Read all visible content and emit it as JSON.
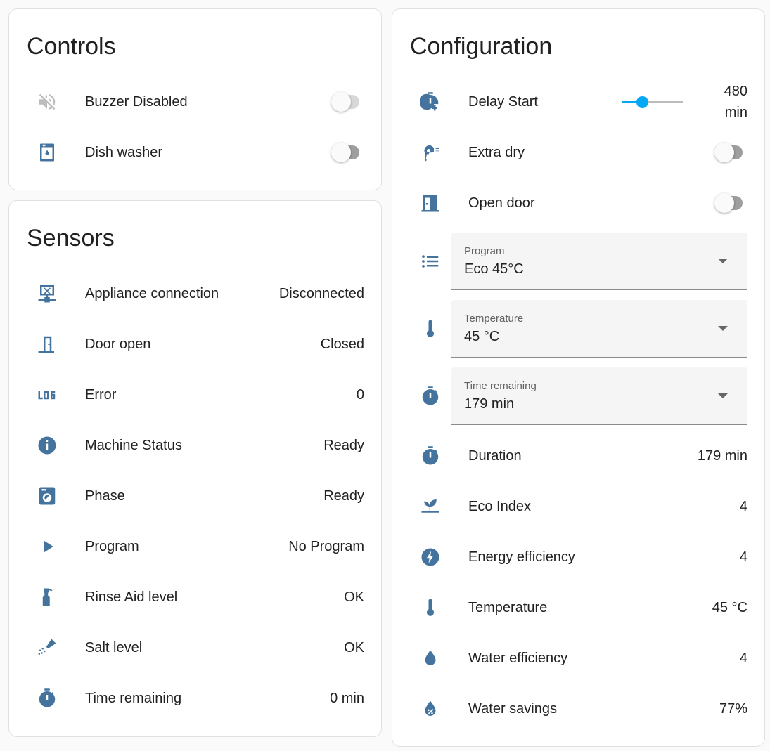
{
  "colors": {
    "icon": "#44739e",
    "accent": "#03a9f4",
    "toggle_off": "#9e9e9e"
  },
  "controls": {
    "title": "Controls",
    "items": [
      {
        "icon": "volume-off-icon",
        "label": "Buzzer Disabled",
        "type": "toggle",
        "state": "off",
        "disabled": true
      },
      {
        "icon": "dishwasher-icon",
        "label": "Dish washer",
        "type": "toggle",
        "state": "off"
      }
    ]
  },
  "sensors": {
    "title": "Sensors",
    "items": [
      {
        "icon": "lan-disconnect-icon",
        "label": "Appliance connection",
        "value": "Disconnected"
      },
      {
        "icon": "door-icon",
        "label": "Door open",
        "value": "Closed"
      },
      {
        "icon": "math-log-icon",
        "label": "Error",
        "value": "0"
      },
      {
        "icon": "information-icon",
        "label": "Machine Status",
        "value": "Ready"
      },
      {
        "icon": "washing-machine-icon",
        "label": "Phase",
        "value": "Ready"
      },
      {
        "icon": "play-icon",
        "label": "Program",
        "value": "No Program"
      },
      {
        "icon": "spray-bottle-icon",
        "label": "Rinse Aid level",
        "value": "OK"
      },
      {
        "icon": "shaker-icon",
        "label": "Salt level",
        "value": "OK"
      },
      {
        "icon": "timer-icon",
        "label": "Time remaining",
        "value": "0 min"
      }
    ]
  },
  "configuration": {
    "title": "Configuration",
    "delay_start": {
      "icon": "timer-plus-icon",
      "label": "Delay Start",
      "value": "480",
      "unit": "min",
      "slider_fraction": 0.32
    },
    "toggles": [
      {
        "icon": "hair-dryer-icon",
        "label": "Extra dry",
        "state": "off"
      },
      {
        "icon": "door-open-icon",
        "label": "Open door",
        "state": "off"
      }
    ],
    "selects": [
      {
        "icon": "format-list-bulleted-icon",
        "label": "Program",
        "value": "Eco 45°C"
      },
      {
        "icon": "thermometer-icon",
        "label": "Temperature",
        "value": "45 °C"
      },
      {
        "icon": "timer-icon",
        "label": "Time remaining",
        "value": "179 min"
      }
    ],
    "sensors": [
      {
        "icon": "timer-icon",
        "label": "Duration",
        "value": "179 min"
      },
      {
        "icon": "sprout-icon",
        "label": "Eco Index",
        "value": "4"
      },
      {
        "icon": "lightning-bolt-circle-icon",
        "label": "Energy efficiency",
        "value": "4"
      },
      {
        "icon": "thermometer-icon",
        "label": "Temperature",
        "value": "45 °C"
      },
      {
        "icon": "water-icon",
        "label": "Water efficiency",
        "value": "4"
      },
      {
        "icon": "water-percent-icon",
        "label": "Water savings",
        "value": "77%"
      }
    ]
  }
}
